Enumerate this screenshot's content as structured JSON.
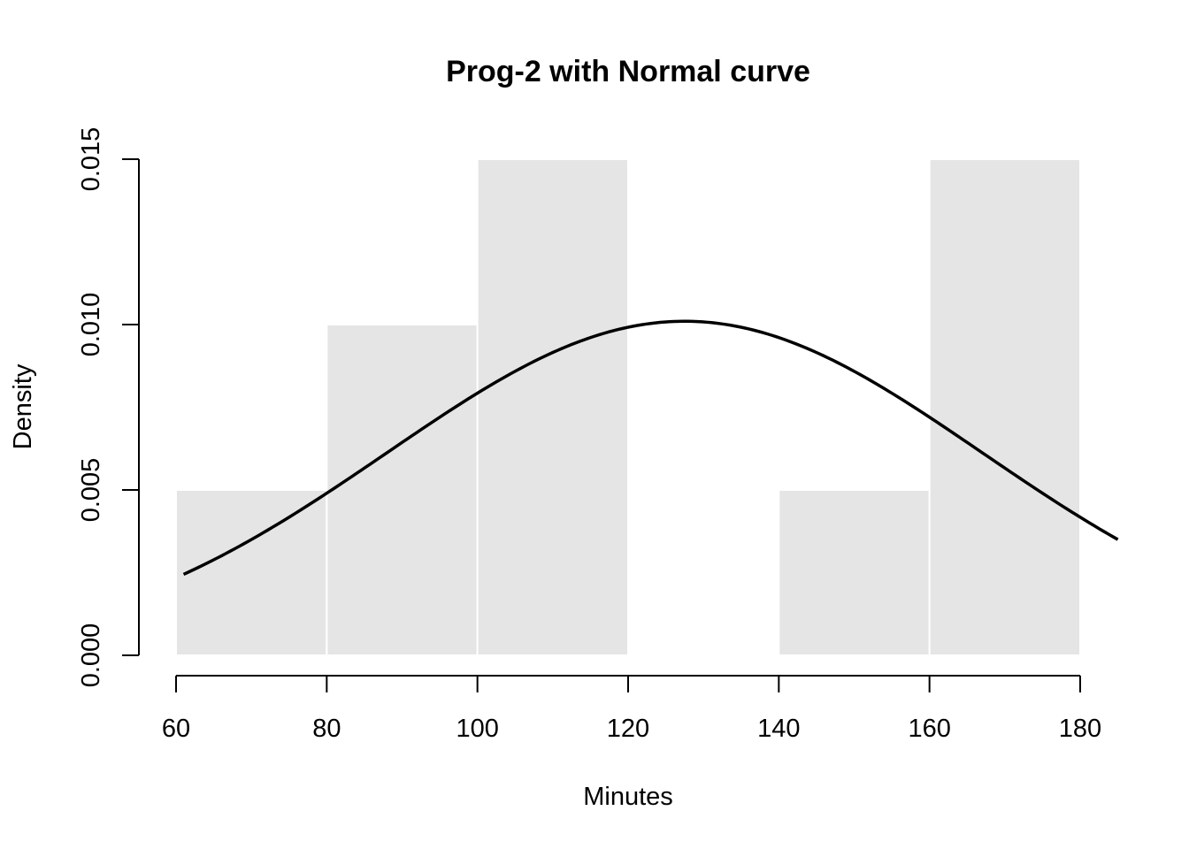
{
  "chart_data": {
    "type": "bar",
    "title": "Prog-2 with Normal curve",
    "xlabel": "Minutes",
    "ylabel": "Density",
    "xlim": [
      60,
      185
    ],
    "ylim": [
      0,
      0.015
    ],
    "x_ticks": [
      60,
      80,
      100,
      120,
      140,
      160,
      180
    ],
    "x_tick_labels": [
      "60",
      "80",
      "100",
      "120",
      "140",
      "160",
      "180"
    ],
    "y_ticks": [
      0,
      0.005,
      0.01,
      0.015
    ],
    "y_tick_labels": [
      "0.000",
      "0.005",
      "0.010",
      "0.015"
    ],
    "bin_edges": [
      60,
      80,
      100,
      120,
      140,
      160,
      180
    ],
    "density": [
      0.005,
      0.01,
      0.015,
      0,
      0.005,
      0.015
    ],
    "normal_curve": {
      "mean": 127.5,
      "sd": 39.5
    },
    "grid": false,
    "colors": {
      "bar_fill": "#e5e5e5",
      "bar_border": "#ffffff",
      "curve": "#000000"
    }
  }
}
